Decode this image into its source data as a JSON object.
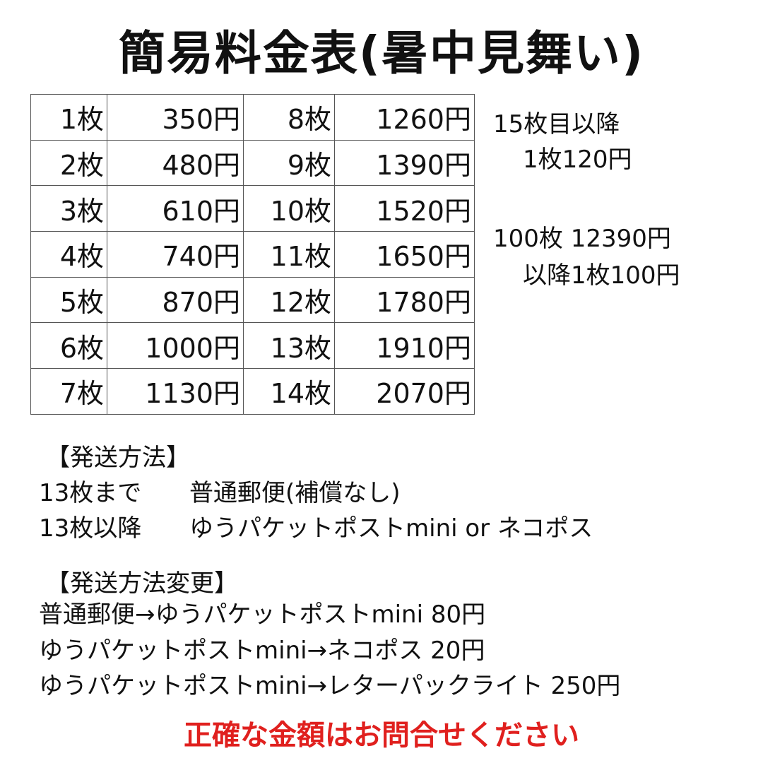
{
  "title": "簡易料金表(暑中見舞い)",
  "table": {
    "rows": [
      [
        "1枚",
        "350円",
        "8枚",
        "1260円"
      ],
      [
        "2枚",
        "480円",
        "9枚",
        "1390円"
      ],
      [
        "3枚",
        "610円",
        "10枚",
        "1520円"
      ],
      [
        "4枚",
        "740円",
        "11枚",
        "1650円"
      ],
      [
        "5枚",
        "870円",
        "12枚",
        "1780円"
      ],
      [
        "6枚",
        "1000円",
        "13枚",
        "1910円"
      ],
      [
        "7枚",
        "1130円",
        "14枚",
        "2070円"
      ]
    ]
  },
  "notes": [
    "15枚目以降",
    "1枚120円",
    "100枚 12390円",
    "以降1枚100円"
  ],
  "shipping": {
    "heading": "【発送方法】",
    "rows": [
      [
        "13枚まで",
        "普通郵便(補償なし)"
      ],
      [
        "13枚以降",
        "ゆうパケットポストmini or ネコポス"
      ]
    ]
  },
  "changes": {
    "heading": "【発送方法変更】",
    "lines": [
      "普通郵便→ゆうパケットポストmini 80円",
      "ゆうパケットポストmini→ネコポス 20円",
      "ゆうパケットポストmini→レターパックライト 250円"
    ]
  },
  "footer": "正確な金額はお問合せください"
}
